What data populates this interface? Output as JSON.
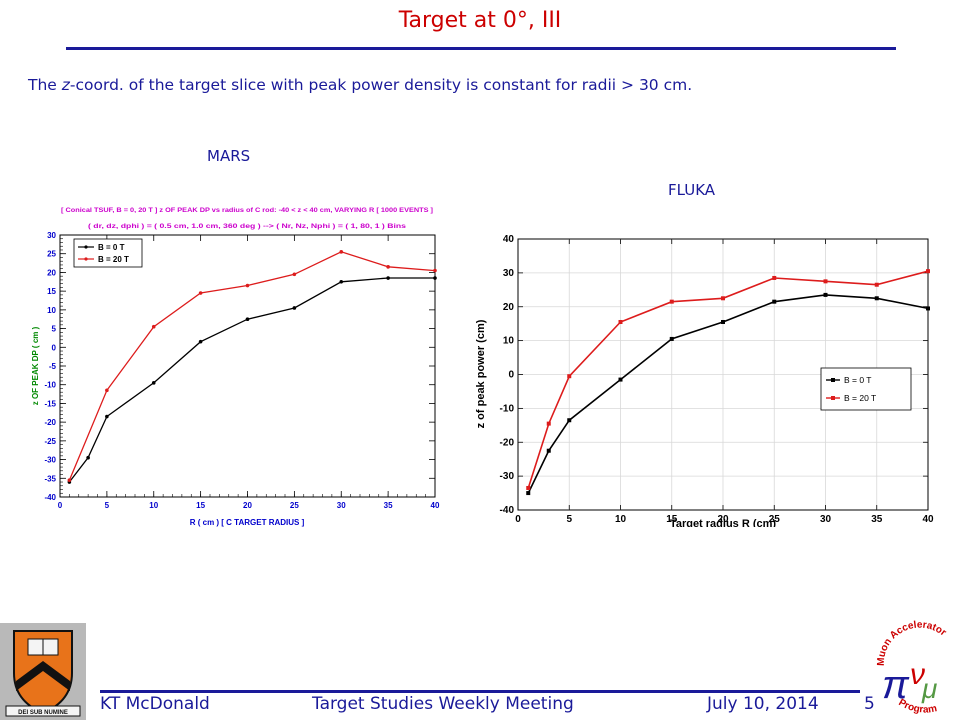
{
  "slide": {
    "title": "Target at 0°, III",
    "subtitle_pre": "The ",
    "subtitle_em": "z",
    "subtitle_post": "-coord. of the target slice with peak power density is constant for radii > 30 cm.",
    "mars_label": "MARS",
    "fluka_label": "FLUKA"
  },
  "footer": {
    "author": "KT McDonald",
    "meeting": "Target Studies Weekly Meeting",
    "date": "July 10, 2014",
    "page": "5"
  },
  "logo": {
    "line1": "Muon Accelerator",
    "line2": "Program",
    "seal_text": "DEI SUB NUMINE"
  },
  "colors": {
    "title": "#cc0000",
    "text": "#1a1a99",
    "b0": "#000000",
    "b20": "#dd1c1c",
    "mars_axis_text": "#0000cc",
    "mars_header": "#cc00cc",
    "mars_ylabel": "#008800"
  },
  "chart_data": [
    {
      "type": "line",
      "source": "MARS",
      "header_line1": "[ Conical TSUF, B = 0, 20 T ] z OF PEAK DP vs radius of C rod: -40 < z < 40 cm, VARYING R [ 1000 EVENTS ]",
      "header_line2": "( dr, dz, dphi ) = ( 0.5 cm, 1.0 cm, 360 deg ) --> ( Nr, Nz, Nphi ) = ( 1, 80, 1 ) Bins",
      "xlabel": "R ( cm ) [ C  TARGET RADIUS ]",
      "ylabel": "z  OF  PEAK  DP ( cm )",
      "xlim": [
        0,
        40
      ],
      "ylim": [
        -40,
        30
      ],
      "xticks": [
        "0",
        "5",
        "10",
        "15",
        "20",
        "25",
        "30",
        "35",
        "40"
      ],
      "yticks": [
        "-40",
        "-35",
        "-30",
        "-25",
        "-20",
        "-15",
        "-10",
        "-5",
        "0",
        "5",
        "10",
        "15",
        "20",
        "25",
        "30"
      ],
      "legend_position": "top-left",
      "grid": false,
      "series": [
        {
          "name": "B = 0 T",
          "color": "#000000",
          "x": [
            1,
            3,
            5,
            10,
            15,
            20,
            25,
            30,
            35,
            40
          ],
          "y": [
            -36,
            -29.5,
            -18.5,
            -9.5,
            1.5,
            7.5,
            10.5,
            17.5,
            18.5,
            18.5
          ]
        },
        {
          "name": "B = 20 T",
          "color": "#dd1c1c",
          "x": [
            1,
            5,
            10,
            15,
            20,
            25,
            30,
            35,
            40
          ],
          "y": [
            -35.5,
            -11.5,
            5.5,
            14.5,
            16.5,
            19.5,
            25.5,
            21.5,
            20.5
          ]
        }
      ]
    },
    {
      "type": "line",
      "source": "FLUKA",
      "xlabel": "Target radius R (cm)",
      "ylabel": "z of peak power (cm)",
      "xlim": [
        0,
        40
      ],
      "ylim": [
        -40,
        40
      ],
      "xticks": [
        "0",
        "5",
        "10",
        "15",
        "20",
        "25",
        "30",
        "35",
        "40"
      ],
      "yticks": [
        "-40",
        "-30",
        "-20",
        "-10",
        "0",
        "10",
        "20",
        "30",
        "40"
      ],
      "legend_position": "center-right",
      "grid": true,
      "series": [
        {
          "name": "B = 0 T",
          "color": "#000000",
          "x": [
            1,
            3,
            5,
            10,
            15,
            20,
            25,
            30,
            35,
            40
          ],
          "y": [
            -35,
            -22.5,
            -13.5,
            -1.5,
            10.5,
            15.5,
            21.5,
            23.5,
            22.5,
            19.5
          ]
        },
        {
          "name": "B = 20 T",
          "color": "#dd1c1c",
          "x": [
            1,
            3,
            5,
            10,
            15,
            20,
            25,
            30,
            35,
            40
          ],
          "y": [
            -33.5,
            -14.5,
            -0.5,
            15.5,
            21.5,
            22.5,
            28.5,
            27.5,
            26.5,
            30.5
          ]
        }
      ]
    }
  ]
}
